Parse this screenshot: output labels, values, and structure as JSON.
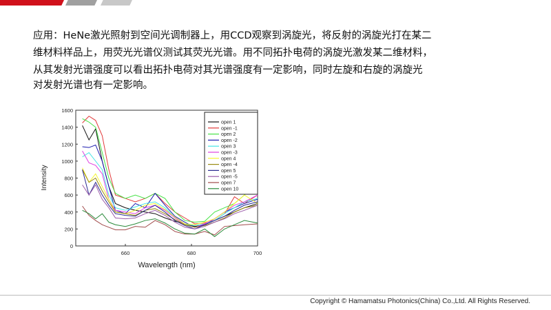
{
  "header": {
    "bar_colors": [
      "#d0111b",
      "#a0a0a0",
      "#c8c8c8"
    ]
  },
  "paragraph": [
    "应用：HeNe激光照射到空间光调制器上，用CCD观察到涡旋光，将反射的涡旋光打在某二",
    "维材料样品上，用荧光光谱仪测试其荧光光谱。用不同拓扑电荷的涡旋光激发某二维材料，",
    "从其发射光谱强度可以看出拓扑电荷对其光谱强度有一定影响，同时左旋和右旋的涡旋光",
    "对发射光谱也有一定影响。"
  ],
  "footer": {
    "copyright": "Copyright © Hamamatsu Photonics(China) Co.,Ltd. All Rights Reserved."
  },
  "chart_data": {
    "type": "line",
    "title": "",
    "xlabel": "Wavelength (nm)",
    "ylabel": "Intensity",
    "xlim": [
      645,
      700
    ],
    "ylim": [
      0,
      1600
    ],
    "xticks": [
      660,
      680,
      700
    ],
    "yticks": [
      0,
      200,
      400,
      600,
      800,
      1000,
      1200,
      1400,
      1600
    ],
    "grid": false,
    "legend_placement": "top-right",
    "x": [
      647,
      649,
      651,
      653,
      655,
      657,
      660,
      663,
      666,
      669,
      672,
      675,
      678,
      681,
      684,
      687,
      690,
      693,
      696,
      700
    ],
    "series": [
      {
        "name": "open 1",
        "color": "#111111",
        "values": [
          1420,
          1250,
          1380,
          1000,
          700,
          500,
          450,
          420,
          400,
          380,
          330,
          290,
          260,
          230,
          250,
          300,
          350,
          400,
          450,
          500
        ]
      },
      {
        "name": "open -1",
        "color": "#e23a3a",
        "values": [
          1450,
          1530,
          1480,
          1300,
          900,
          600,
          560,
          520,
          560,
          620,
          500,
          400,
          330,
          260,
          270,
          300,
          380,
          580,
          500,
          600
        ]
      },
      {
        "name": "open 2",
        "color": "#44e244",
        "values": [
          1500,
          1460,
          1400,
          1100,
          800,
          620,
          560,
          600,
          560,
          620,
          560,
          400,
          300,
          280,
          290,
          400,
          450,
          500,
          600,
          720
        ]
      },
      {
        "name": "open -2",
        "color": "#1a1ab0",
        "values": [
          1170,
          1160,
          1190,
          1000,
          700,
          420,
          380,
          500,
          450,
          620,
          480,
          350,
          280,
          220,
          250,
          320,
          400,
          450,
          500,
          550
        ]
      },
      {
        "name": "open 3",
        "color": "#44e5e5",
        "values": [
          1050,
          1100,
          1000,
          900,
          600,
          450,
          420,
          460,
          500,
          520,
          450,
          340,
          260,
          240,
          260,
          300,
          380,
          450,
          520,
          560
        ]
      },
      {
        "name": "open -3",
        "color": "#e040e0",
        "values": [
          1120,
          980,
          950,
          850,
          550,
          420,
          400,
          380,
          450,
          480,
          420,
          330,
          250,
          220,
          260,
          320,
          400,
          480,
          520,
          600
        ]
      },
      {
        "name": "open 4",
        "color": "#f5f530",
        "values": [
          920,
          750,
          850,
          700,
          550,
          400,
          380,
          420,
          480,
          500,
          430,
          340,
          260,
          250,
          280,
          320,
          400,
          500,
          600,
          500
        ]
      },
      {
        "name": "open -4",
        "color": "#9a8a10",
        "values": [
          900,
          750,
          800,
          650,
          520,
          400,
          380,
          360,
          420,
          440,
          380,
          310,
          250,
          220,
          240,
          280,
          330,
          400,
          450,
          480
        ]
      },
      {
        "name": "open 5",
        "color": "#2a2a90",
        "values": [
          900,
          600,
          750,
          600,
          480,
          380,
          360,
          350,
          420,
          480,
          400,
          300,
          240,
          200,
          250,
          300,
          350,
          420,
          480,
          520
        ]
      },
      {
        "name": "open -5",
        "color": "#9a5aa8",
        "values": [
          720,
          600,
          720,
          550,
          450,
          330,
          320,
          330,
          380,
          420,
          360,
          280,
          220,
          200,
          230,
          280,
          320,
          380,
          420,
          480
        ]
      },
      {
        "name": "open 7",
        "color": "#a04a4a",
        "values": [
          470,
          360,
          300,
          250,
          220,
          190,
          190,
          230,
          220,
          300,
          250,
          170,
          140,
          140,
          170,
          130,
          230,
          240,
          250,
          260
        ]
      },
      {
        "name": "open 10",
        "color": "#2a8a3a",
        "values": [
          420,
          380,
          320,
          380,
          280,
          250,
          230,
          260,
          300,
          320,
          270,
          200,
          150,
          140,
          200,
          110,
          200,
          250,
          300,
          270
        ]
      }
    ]
  }
}
